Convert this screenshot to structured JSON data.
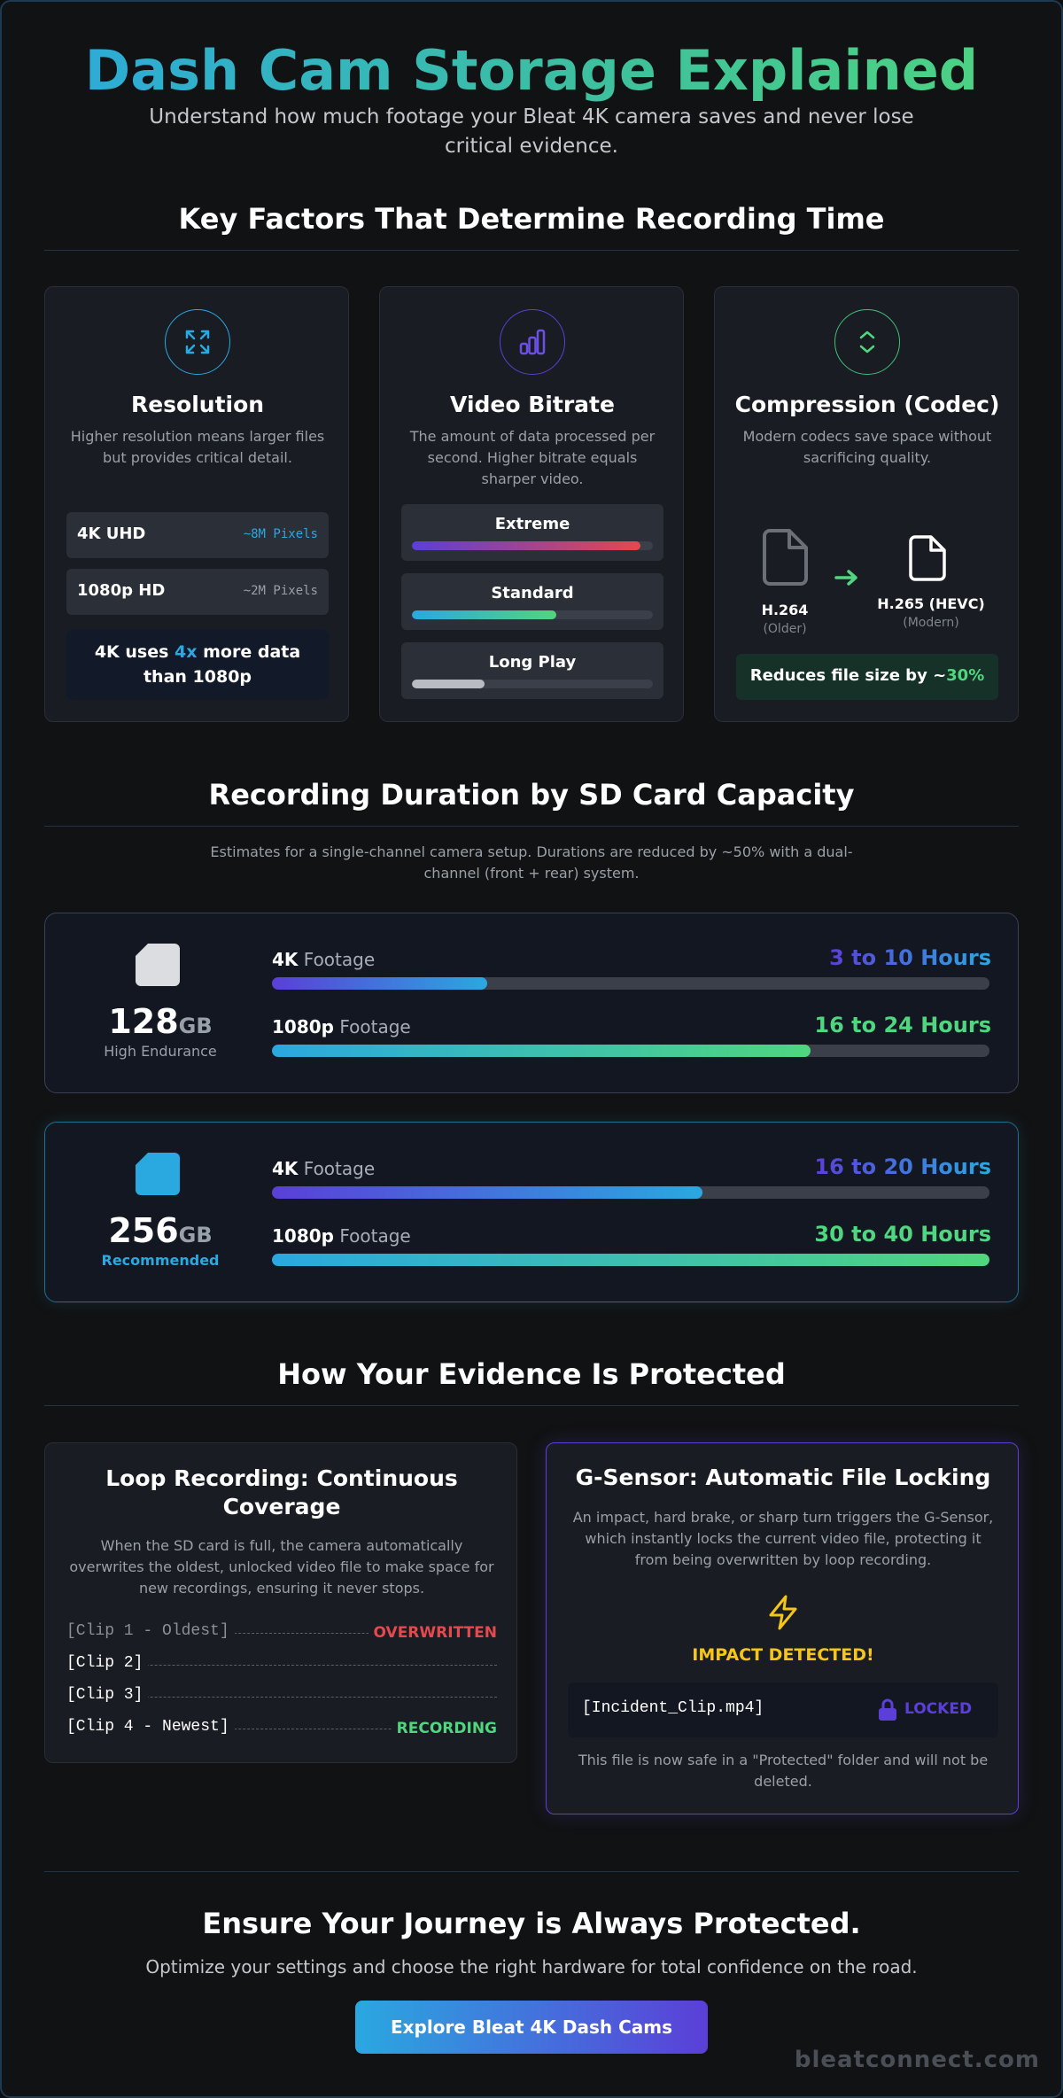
{
  "header": {
    "title": "Dash Cam Storage Explained",
    "subtitle": "Understand how much footage your Bleat 4K camera saves and never lose critical evidence."
  },
  "factors": {
    "section_title": "Key Factors That Determine Recording Time",
    "resolution": {
      "icon": "expand-arrows-icon",
      "title": "Resolution",
      "desc": "Higher resolution means larger files but provides critical detail.",
      "rows": [
        {
          "label": "4K UHD",
          "value": "~8M Pixels"
        },
        {
          "label": "1080p HD",
          "value": "~2M Pixels"
        }
      ],
      "note_pre": "4K uses ",
      "note_accent": "4x",
      "note_post": " more data than 1080p"
    },
    "bitrate": {
      "icon": "bar-chart-icon",
      "title": "Video Bitrate",
      "desc": "The amount of data processed per second. Higher bitrate equals sharper video.",
      "levels": [
        {
          "label": "Extreme",
          "level": 0.95
        },
        {
          "label": "Standard",
          "level": 0.6
        },
        {
          "label": "Long Play",
          "level": 0.3
        }
      ]
    },
    "codec": {
      "icon": "compress-arrows-icon",
      "title": "Compression (Codec)",
      "desc": "Modern codecs save space without sacrificing quality.",
      "old_name": "H.264",
      "old_tag": "(Older)",
      "new_name": "H.265 (HEVC)",
      "new_tag": "(Modern)",
      "note_pre": "Reduces file size by ~",
      "note_accent": "30%"
    }
  },
  "capacity": {
    "section_title": "Recording Duration by SD Card Capacity",
    "note": "Estimates for a single-channel camera setup. Durations are reduced by ~50% with a dual-channel (front + rear) system.",
    "cards": [
      {
        "size": "128",
        "unit": "GB",
        "tag": "High Endurance",
        "k4_bold": "4K",
        "k4_rest": " Footage",
        "k4_hours": "3 to 10 Hours",
        "k4_level": 0.3,
        "p1080_bold": "1080p",
        "p1080_rest": " Footage",
        "p1080_hours": "16 to 24 Hours",
        "p1080_level": 0.75
      },
      {
        "size": "256",
        "unit": "GB",
        "tag": "Recommended",
        "k4_bold": "4K",
        "k4_rest": " Footage",
        "k4_hours": "16 to 20 Hours",
        "k4_level": 0.6,
        "p1080_bold": "1080p",
        "p1080_rest": " Footage",
        "p1080_hours": "30 to 40 Hours",
        "p1080_level": 1.0
      }
    ]
  },
  "protection": {
    "section_title": "How Your Evidence Is Protected",
    "loop": {
      "title": "Loop Recording: Continuous Coverage",
      "desc": "When the SD card is full, the camera automatically overwrites the oldest, unlocked video file to make space for new recordings, ensuring it never stops.",
      "clips": [
        {
          "name": "[Clip 1 - Oldest]",
          "status": "OVERWRITTEN"
        },
        {
          "name": "[Clip 2]",
          "status": ""
        },
        {
          "name": "[Clip 3]",
          "status": ""
        },
        {
          "name": "[Clip 4 - Newest]",
          "status": "RECORDING"
        }
      ]
    },
    "gsensor": {
      "title": "G-Sensor: Automatic File Locking",
      "desc": "An impact, hard brake, or sharp turn triggers the G-Sensor, which instantly locks the current video file, protecting it from being overwritten by loop recording.",
      "alert": "IMPACT DETECTED!",
      "file": "[Incident_Clip.mp4]",
      "lock_label": "LOCKED",
      "footnote": "This file is now safe in a \"Protected\" folder and will not be deleted."
    }
  },
  "cta": {
    "title": "Ensure Your Journey is Always Protected.",
    "subtitle": "Optimize your settings and choose the right hardware for total confidence on the road.",
    "button": "Explore Bleat 4K Dash Cams",
    "brand": "bleatconnect.com"
  },
  "colors": {
    "accent_blue": "#2aa8e0",
    "accent_green": "#4fd67e",
    "accent_purple": "#5b3fd8",
    "alert_red": "#e5484d",
    "alert_yellow": "#f5c518"
  }
}
